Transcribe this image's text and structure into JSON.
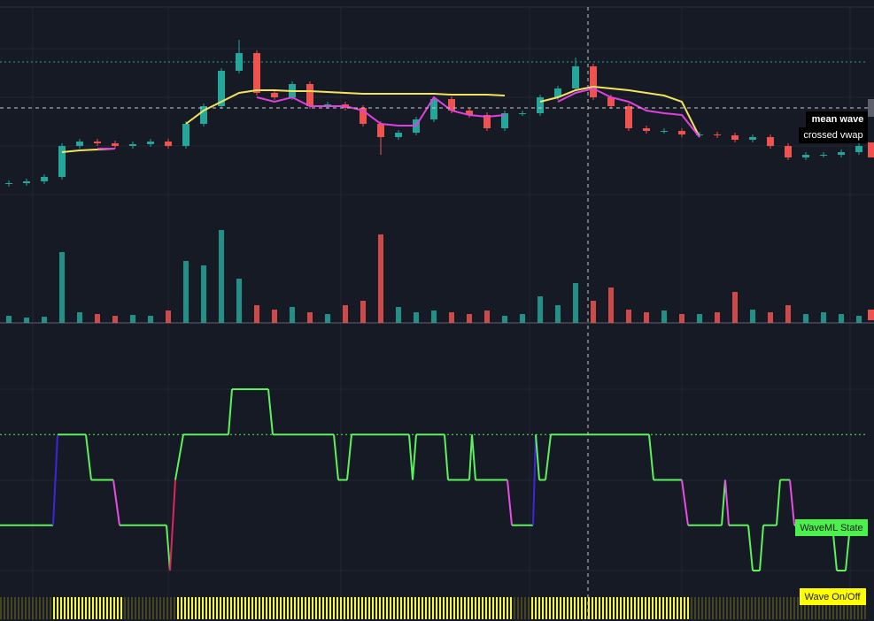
{
  "chart_data": [
    {
      "type": "candlestick",
      "open": [
        12,
        13,
        15,
        20,
        55,
        60,
        58,
        55,
        57,
        60,
        55,
        80,
        100,
        140,
        160,
        115,
        110,
        125,
        100,
        102,
        98,
        80,
        65,
        70,
        85,
        108,
        95,
        90,
        75,
        92,
        92,
        110,
        120,
        145,
        110,
        100,
        75,
        72,
        72,
        68,
        68,
        67,
        62,
        65,
        55,
        42,
        45,
        45,
        48
      ],
      "high": [
        16,
        18,
        23,
        58,
        63,
        63,
        61,
        60,
        63,
        63,
        83,
        103,
        143,
        175,
        163,
        118,
        128,
        128,
        105,
        105,
        101,
        83,
        73,
        88,
        111,
        111,
        98,
        93,
        95,
        95,
        113,
        123,
        155,
        148,
        113,
        103,
        78,
        75,
        75,
        71,
        71,
        70,
        68,
        68,
        58,
        48,
        48,
        51,
        58
      ],
      "low": [
        9,
        10,
        12,
        17,
        52,
        55,
        52,
        52,
        54,
        52,
        52,
        77,
        97,
        137,
        112,
        107,
        107,
        97,
        97,
        95,
        77,
        45,
        62,
        67,
        82,
        92,
        87,
        72,
        72,
        89,
        89,
        107,
        117,
        107,
        97,
        72,
        69,
        69,
        65,
        65,
        64,
        59,
        59,
        52,
        39,
        39,
        42,
        42,
        45
      ],
      "close": [
        13,
        15,
        20,
        55,
        60,
        58,
        55,
        57,
        60,
        55,
        80,
        100,
        140,
        160,
        115,
        110,
        125,
        100,
        102,
        98,
        80,
        65,
        70,
        85,
        108,
        95,
        90,
        75,
        92,
        92,
        110,
        120,
        145,
        110,
        100,
        75,
        72,
        72,
        68,
        68,
        67,
        62,
        65,
        55,
        42,
        45,
        45,
        48,
        55
      ],
      "up_color": "#26a69a",
      "down_color": "#ef5350",
      "lines": [
        {
          "color": "#f5e35a",
          "values": [
            null,
            null,
            null,
            48,
            50,
            51,
            52,
            null,
            null,
            null,
            80,
            95,
            105,
            115,
            118,
            118,
            117,
            117,
            116,
            115,
            114,
            114,
            114,
            114,
            114,
            113,
            113,
            113,
            112,
            null,
            105,
            110,
            118,
            122,
            120,
            118,
            115,
            112,
            105,
            65,
            null,
            null,
            null,
            null,
            null,
            null,
            null,
            null,
            null
          ]
        },
        {
          "color": "#e040e0",
          "values": [
            null,
            null,
            null,
            null,
            null,
            52,
            52,
            null,
            null,
            null,
            null,
            null,
            null,
            null,
            110,
            105,
            110,
            100,
            100,
            100,
            95,
            80,
            78,
            78,
            110,
            95,
            90,
            88,
            90,
            null,
            null,
            105,
            115,
            120,
            110,
            105,
            95,
            92,
            90,
            65,
            null,
            null,
            null,
            null,
            null,
            null,
            null,
            null,
            null
          ]
        }
      ],
      "ref_line": 150,
      "ref_color": "#26a69a",
      "ylim": [
        0,
        212
      ],
      "annotations": [
        "mean wave",
        "crossed vwap"
      ]
    },
    {
      "type": "bar",
      "values": [
        8,
        6,
        7,
        80,
        12,
        10,
        8,
        9,
        8,
        14,
        70,
        65,
        105,
        50,
        20,
        15,
        18,
        12,
        10,
        20,
        25,
        100,
        18,
        12,
        14,
        12,
        10,
        14,
        8,
        10,
        30,
        20,
        45,
        25,
        40,
        15,
        12,
        14,
        10,
        10,
        12,
        35,
        15,
        12,
        20,
        10,
        12,
        10,
        8
      ],
      "ylim": [
        0,
        110
      ]
    },
    {
      "type": "step",
      "x": [
        -0.5,
        2.5,
        2.75,
        4.35,
        4.65,
        5.9,
        6.25,
        8.9,
        9.1,
        9.4,
        9.85,
        12.4,
        12.6,
        14.65,
        14.9,
        18.35,
        18.6,
        19.1,
        19.35,
        22.6,
        22.8,
        23,
        24.6,
        24.8,
        26,
        26.15,
        26.35,
        28.15,
        28.4,
        29.6,
        29.75,
        29.95,
        30.3,
        30.6,
        36.15,
        36.4,
        38,
        38.35,
        40.25,
        40.45,
        40.65,
        41.75,
        42,
        42.4,
        42.6,
        43.35,
        43.55,
        44.1,
        44.35,
        46.5,
        46.75,
        47.25,
        47.5,
        48.5
      ],
      "values": [
        1,
        1,
        3,
        3,
        2,
        2,
        1,
        1,
        0,
        2,
        3,
        3,
        4,
        4,
        3,
        3,
        2,
        2,
        3,
        3,
        2,
        3,
        3,
        2,
        2,
        3,
        2,
        2,
        1,
        1,
        3,
        2,
        2,
        3,
        3,
        2,
        2,
        1,
        1,
        2,
        1,
        1,
        0,
        0,
        1,
        1,
        2,
        2,
        1,
        1,
        0,
        0,
        1,
        1
      ],
      "colors": {
        "step": "#5cf25c",
        "jump": "#3d25e0",
        "jump_from_zero": "#e0245e",
        "drop": "#ea4ce6"
      },
      "ref_line": 3,
      "xlim": [
        -0.5,
        48.5
      ],
      "ylim": [
        0,
        4
      ],
      "label": "WaveML State"
    },
    {
      "type": "onoff",
      "values": [
        0,
        0,
        0,
        1,
        1,
        1,
        1,
        0,
        0,
        0,
        1,
        1,
        1,
        1,
        1,
        1,
        1,
        1,
        1,
        1,
        1,
        1,
        1,
        1,
        1,
        1,
        1,
        1,
        1,
        0,
        1,
        1,
        1,
        1,
        1,
        1,
        1,
        1,
        1,
        0,
        0,
        0,
        0,
        0,
        0,
        0,
        0,
        0,
        0
      ],
      "on_color": "#f7f740",
      "off_color": "#4a4a22",
      "ylim": [
        0,
        1
      ],
      "label": "Wave On/Off"
    }
  ]
}
